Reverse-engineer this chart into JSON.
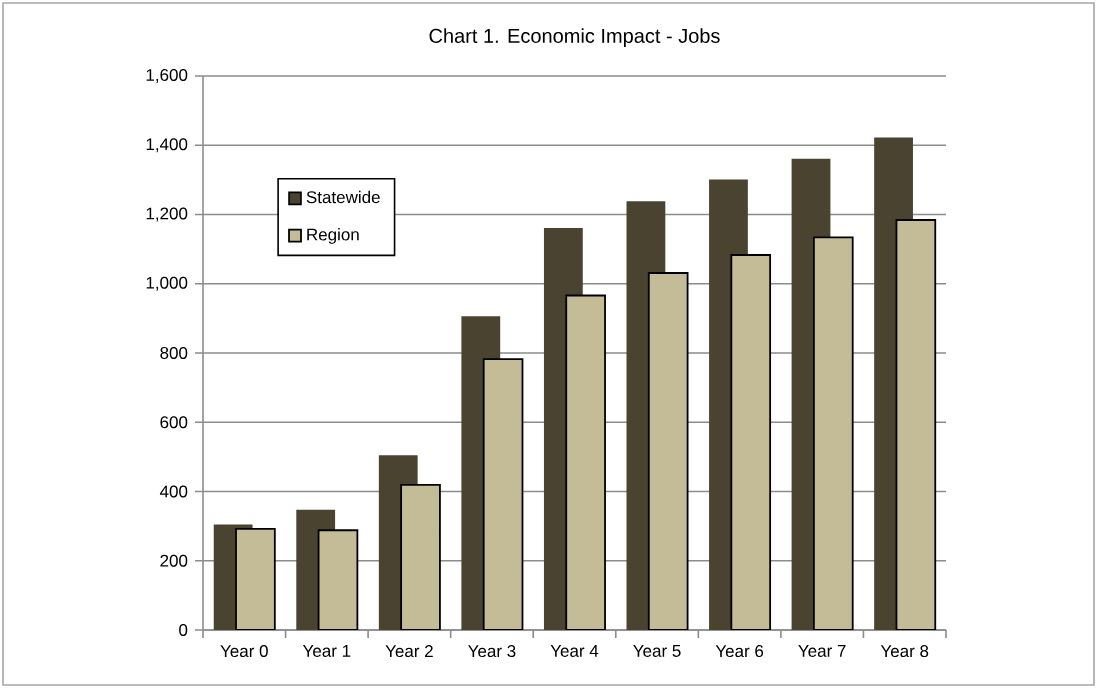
{
  "chart_data": {
    "type": "bar",
    "title": "Chart 1.  Economic Impact - Jobs",
    "categories": [
      "Year 0",
      "Year 1",
      "Year 2",
      "Year 3",
      "Year 4",
      "Year 5",
      "Year 6",
      "Year 7",
      "Year 8"
    ],
    "series": [
      {
        "name": "Statewide",
        "color": "#4a4330",
        "values": [
          305,
          347,
          505,
          906,
          1161,
          1238,
          1301,
          1361,
          1422
        ]
      },
      {
        "name": "Region",
        "color": "#c4bc96",
        "values": [
          292,
          288,
          419,
          782,
          966,
          1031,
          1083,
          1134,
          1184
        ]
      }
    ],
    "ylim": [
      0,
      1600
    ],
    "yticks": [
      0,
      200,
      400,
      600,
      800,
      {
        "value": 1000,
        "label": "1,000"
      },
      {
        "value": 1200,
        "label": "1,200"
      },
      {
        "value": 1400,
        "label": "1,400"
      },
      {
        "value": 1600,
        "label": "1,600"
      }
    ],
    "grid": "y",
    "legend": "top left"
  }
}
